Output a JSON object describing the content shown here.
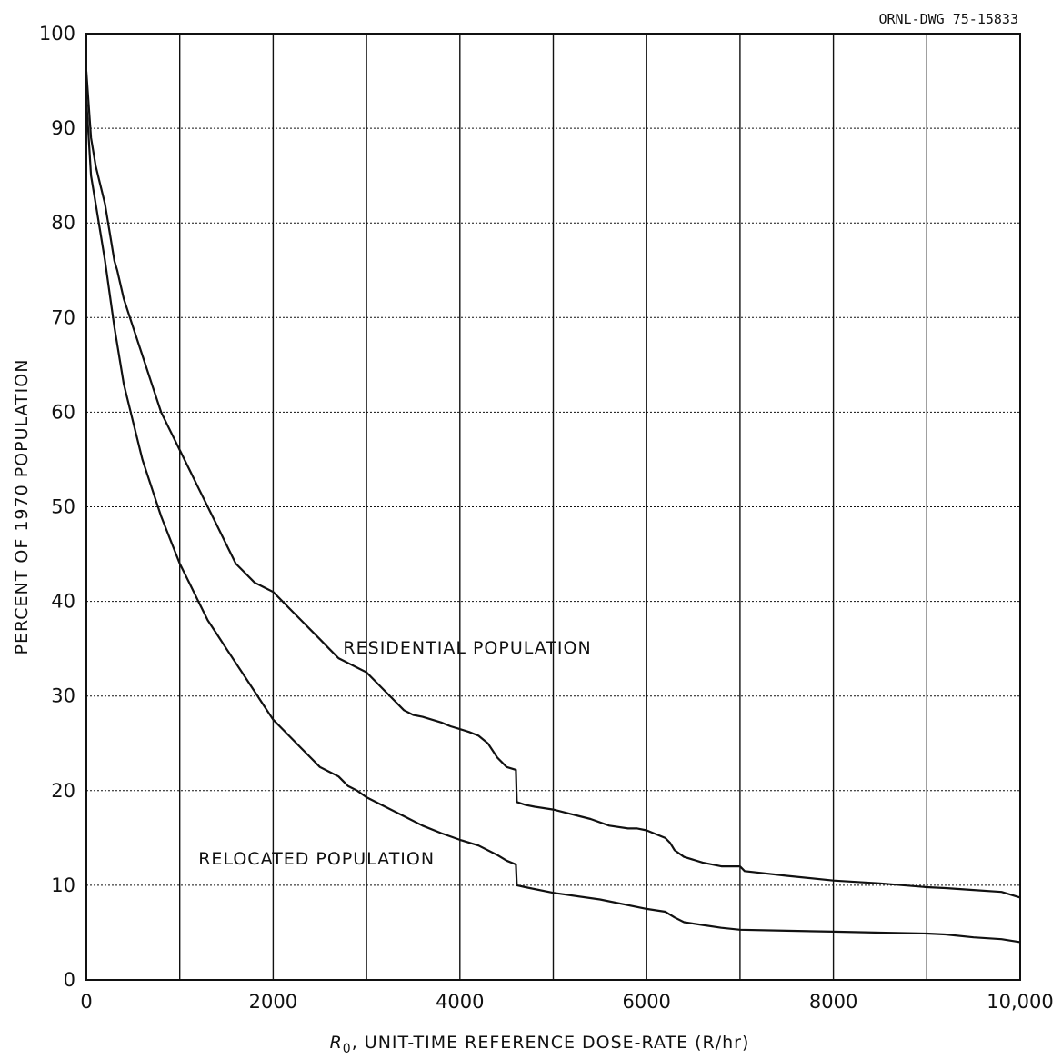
{
  "chart_data": {
    "type": "line",
    "drawing_number": "ORNL-DWG 75-15833",
    "xlabel_symbol": "R",
    "xlabel_subscript": "0",
    "xlabel_rest": ", UNIT-TIME REFERENCE DOSE-RATE (R/hr)",
    "ylabel": "PERCENT OF 1970 POPULATION",
    "xlim": [
      0,
      10000
    ],
    "ylim": [
      0,
      100
    ],
    "x_ticks": [
      0,
      1000,
      2000,
      3000,
      4000,
      5000,
      6000,
      7000,
      8000,
      9000,
      10000
    ],
    "x_tick_labels": [
      "0",
      "",
      "2000",
      "",
      "4000",
      "",
      "6000",
      "",
      "8000",
      "",
      "10,000"
    ],
    "y_ticks": [
      0,
      10,
      20,
      30,
      40,
      50,
      60,
      70,
      80,
      90,
      100
    ],
    "y_tick_labels": [
      "0",
      "10",
      "20",
      "30",
      "40",
      "50",
      "60",
      "70",
      "80",
      "90",
      "100"
    ],
    "grid": true,
    "series": [
      {
        "name": "RESIDENTIAL POPULATION",
        "x": [
          0,
          50,
          100,
          200,
          300,
          330,
          400,
          500,
          600,
          700,
          800,
          900,
          1000,
          1100,
          1200,
          1300,
          1400,
          1500,
          1600,
          1700,
          1800,
          1900,
          2000,
          2100,
          2200,
          2300,
          2400,
          2500,
          2600,
          2700,
          2800,
          2900,
          3000,
          3100,
          3200,
          3300,
          3400,
          3500,
          3600,
          3700,
          3800,
          3900,
          4000,
          4100,
          4200,
          4300,
          4400,
          4500,
          4600,
          4610,
          4700,
          4800,
          5000,
          5200,
          5400,
          5600,
          5800,
          5900,
          6000,
          6200,
          6250,
          6300,
          6400,
          6600,
          6800,
          7000,
          7050,
          7500,
          8000,
          8500,
          9000,
          9200,
          9500,
          9800,
          10000
        ],
        "y": [
          96,
          89,
          86,
          82,
          76,
          75,
          72,
          69,
          66,
          63,
          60,
          58,
          56,
          54,
          52,
          50,
          48,
          46,
          44,
          43,
          42,
          41.5,
          41,
          40,
          39,
          38,
          37,
          36,
          35,
          34,
          33.5,
          33,
          32.5,
          31.5,
          30.5,
          29.5,
          28.5,
          28,
          27.8,
          27.5,
          27.2,
          26.8,
          26.5,
          26.2,
          25.8,
          25,
          23.5,
          22.5,
          22.2,
          18.8,
          18.5,
          18.3,
          18,
          17.5,
          17,
          16.3,
          16,
          16,
          15.8,
          15,
          14.5,
          13.7,
          13,
          12.4,
          12,
          12,
          11.5,
          11,
          10.5,
          10.2,
          9.8,
          9.7,
          9.5,
          9.3,
          8.7
        ]
      },
      {
        "name": "RELOCATED POPULATION",
        "x": [
          0,
          50,
          100,
          200,
          300,
          400,
          500,
          600,
          700,
          800,
          900,
          1000,
          1100,
          1200,
          1300,
          1400,
          1500,
          1600,
          1700,
          1800,
          1900,
          2000,
          2100,
          2200,
          2300,
          2400,
          2500,
          2600,
          2700,
          2800,
          2900,
          3000,
          3200,
          3400,
          3600,
          3800,
          4000,
          4200,
          4400,
          4500,
          4600,
          4610,
          4700,
          5000,
          5500,
          6000,
          6200,
          6300,
          6400,
          6600,
          6800,
          7000,
          7500,
          8000,
          8500,
          9000,
          9200,
          9500,
          9800,
          10000
        ],
        "y": [
          93,
          85,
          82,
          76,
          69,
          63,
          59,
          55,
          52,
          49,
          46.5,
          44,
          42,
          40,
          38,
          36.5,
          35,
          33.5,
          32,
          30.5,
          29,
          27.5,
          26.5,
          25.5,
          24.5,
          23.5,
          22.5,
          22,
          21.5,
          20.5,
          20,
          19.3,
          18.3,
          17.3,
          16.3,
          15.5,
          14.8,
          14.2,
          13.2,
          12.6,
          12.2,
          10,
          9.8,
          9.2,
          8.5,
          7.5,
          7.2,
          6.6,
          6.1,
          5.8,
          5.5,
          5.3,
          5.2,
          5.1,
          5,
          4.9,
          4.8,
          4.5,
          4.3,
          4
        ]
      }
    ],
    "annotations": [
      {
        "text": "RESIDENTIAL POPULATION",
        "x": 2750,
        "y": 34.5
      },
      {
        "text": "RELOCATED POPULATION",
        "x": 1200,
        "y": 12.2
      }
    ]
  }
}
